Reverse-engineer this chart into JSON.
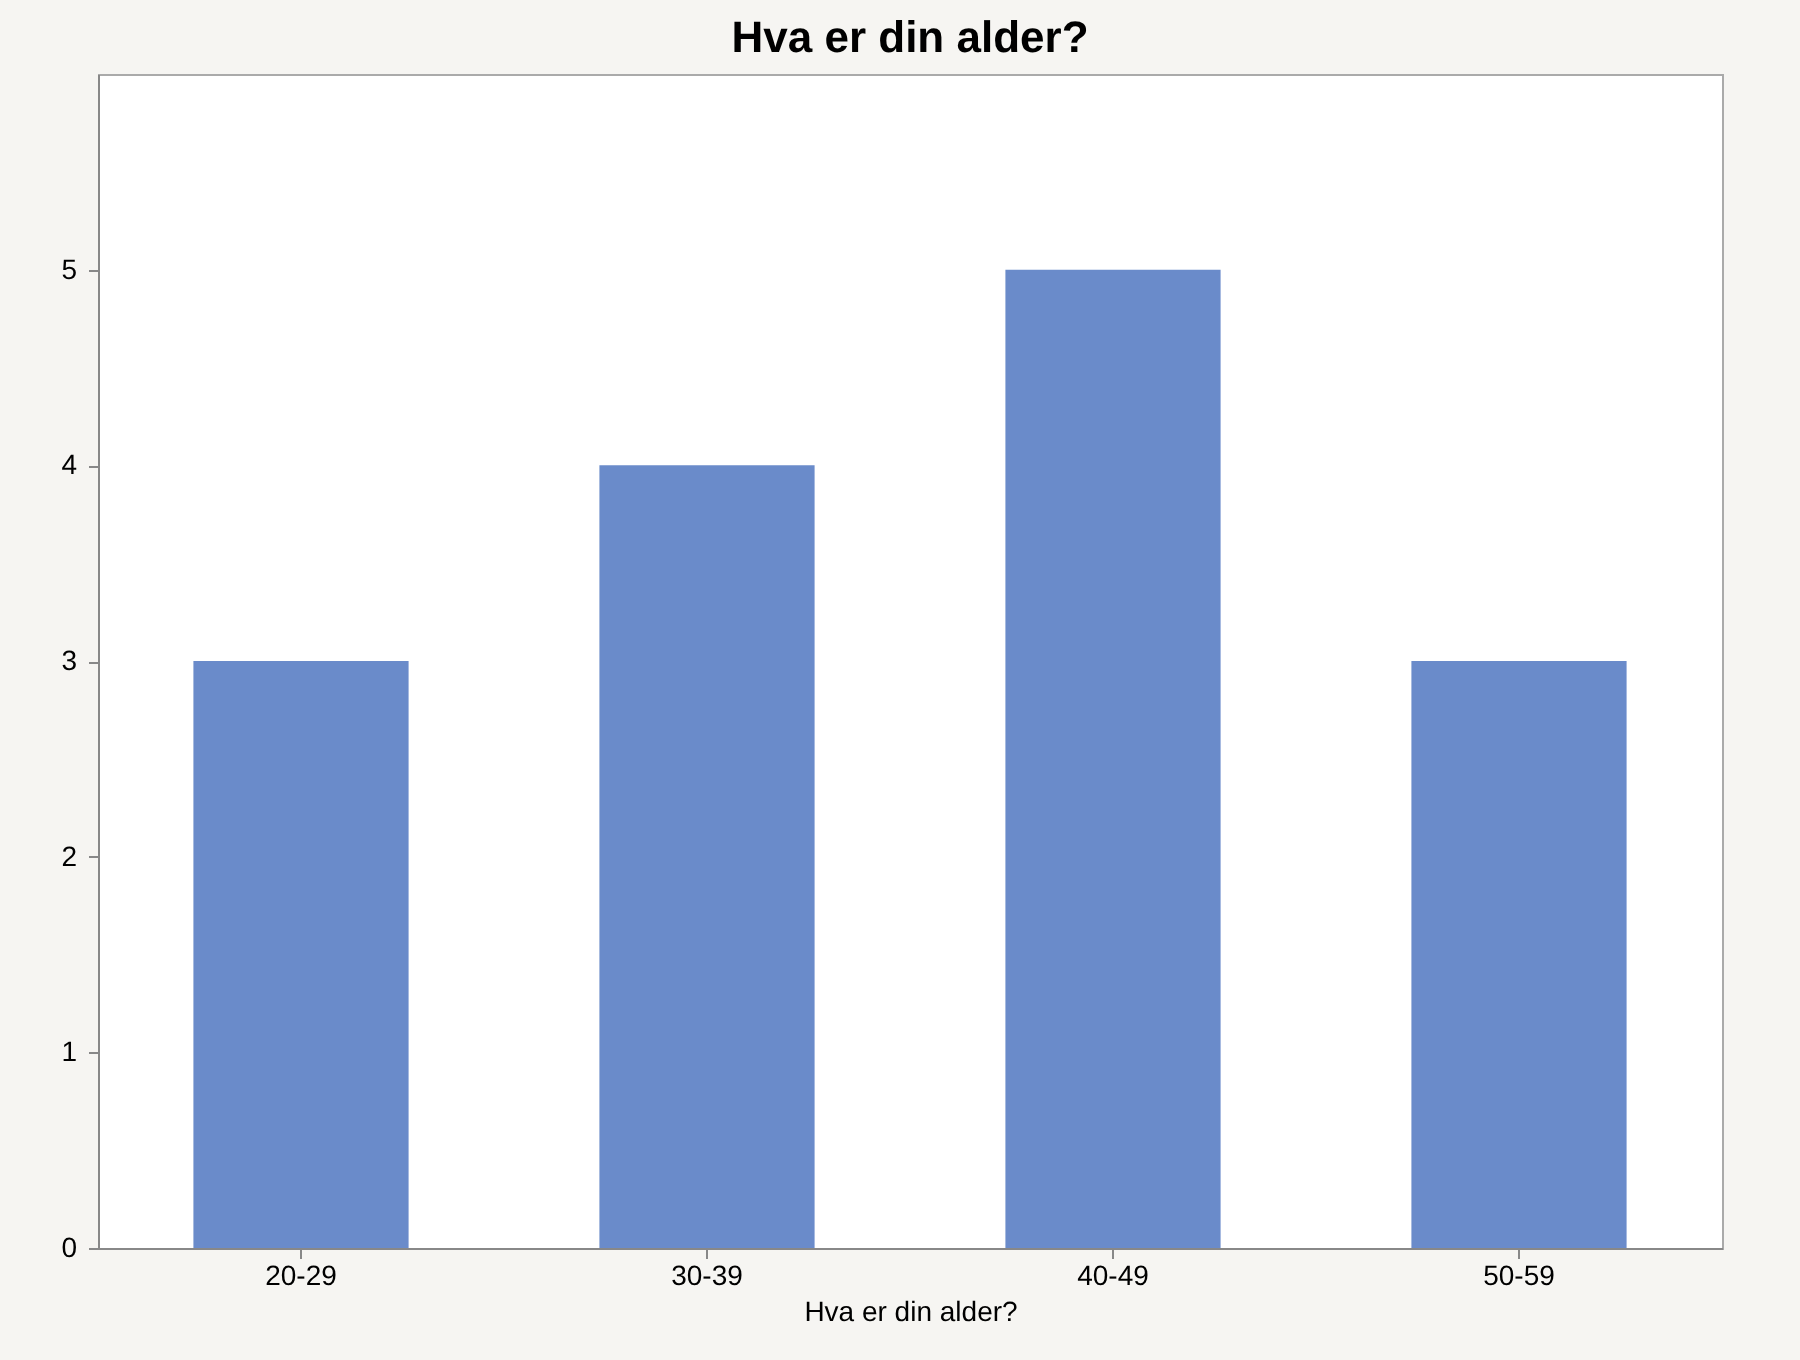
{
  "chart_data": {
    "type": "bar",
    "title": "Hva er din alder?",
    "xlabel": "Hva er din alder?",
    "categories": [
      "20-29",
      "30-39",
      "40-49",
      "50-59"
    ],
    "values": [
      3,
      4,
      5,
      3
    ],
    "color": "#6a8bca",
    "ylim": [
      0,
      6
    ],
    "yticks": [
      0,
      1,
      2,
      3,
      4,
      5
    ],
    "grid": false
  }
}
